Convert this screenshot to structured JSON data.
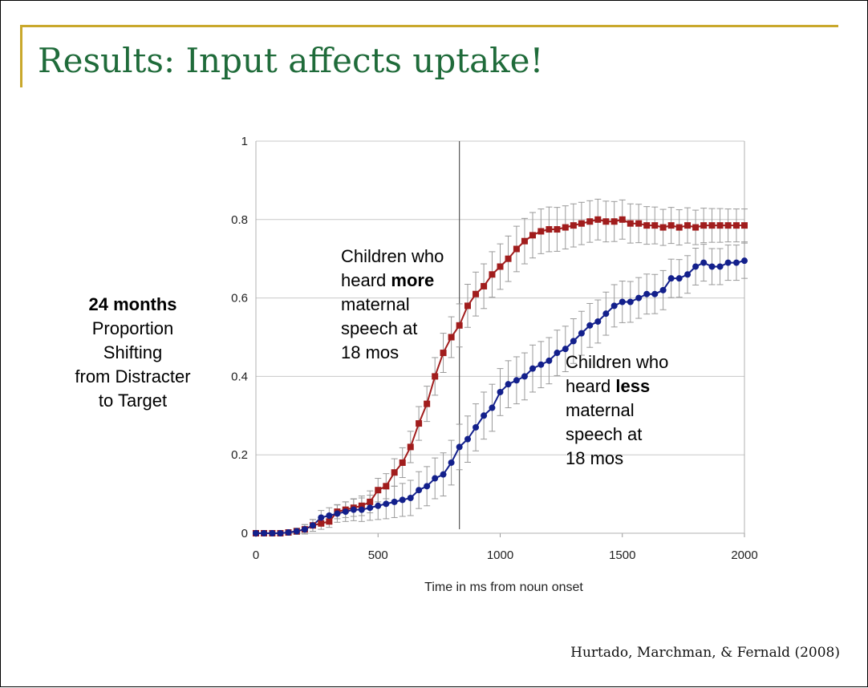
{
  "slide": {
    "title": "Results:  Input affects uptake!",
    "side_label": {
      "line1": "24 months",
      "line2": "Proportion",
      "line3": "Shifting",
      "line4": "from Distracter",
      "line5": "to Target"
    },
    "annotation_more": {
      "l1": "Children who",
      "l2a": "heard ",
      "l2b": "more",
      "l3": "maternal",
      "l4": "speech at",
      "l5": "18 mos"
    },
    "annotation_less": {
      "l1": "Children who",
      "l2a": "heard ",
      "l2b": "less",
      "l3": "maternal",
      "l4": "speech at",
      "l5": "18 mos"
    },
    "citation": "Hurtado, Marchman, & Fernald (2008)",
    "colors": {
      "title": "#1f6b3a",
      "rule": "#c9a82c",
      "more_series": "#a11d1d",
      "less_series": "#13208c"
    }
  },
  "chart_data": {
    "type": "line",
    "xlabel": "Time in ms from noun onset",
    "ylabel": "",
    "xlim": [
      0,
      2000
    ],
    "ylim": [
      0,
      1
    ],
    "xticks": [
      "0",
      "500",
      "1000",
      "1500",
      "2000"
    ],
    "yticks": [
      "0",
      "0.2",
      "0.4",
      "0.6",
      "0.8",
      "1"
    ],
    "grid": "horizontal",
    "reference_line_x": 833,
    "x": [
      0,
      33,
      67,
      100,
      133,
      167,
      200,
      233,
      267,
      300,
      333,
      367,
      400,
      433,
      467,
      500,
      533,
      567,
      600,
      633,
      667,
      700,
      733,
      767,
      800,
      833,
      867,
      900,
      933,
      967,
      1000,
      1033,
      1067,
      1100,
      1133,
      1167,
      1200,
      1233,
      1267,
      1300,
      1333,
      1367,
      1400,
      1433,
      1467,
      1500,
      1533,
      1567,
      1600,
      1633,
      1667,
      1700,
      1733,
      1767,
      1800,
      1833,
      1867,
      1900,
      1933,
      1967,
      2000
    ],
    "series": [
      {
        "marker": "square",
        "values": [
          0,
          0,
          0,
          0,
          0.002,
          0.005,
          0.01,
          0.02,
          0.025,
          0.03,
          0.055,
          0.06,
          0.065,
          0.07,
          0.08,
          0.11,
          0.12,
          0.155,
          0.18,
          0.22,
          0.28,
          0.33,
          0.4,
          0.46,
          0.5,
          0.53,
          0.58,
          0.61,
          0.63,
          0.66,
          0.68,
          0.7,
          0.725,
          0.745,
          0.76,
          0.77,
          0.775,
          0.775,
          0.78,
          0.785,
          0.79,
          0.795,
          0.8,
          0.795,
          0.795,
          0.8,
          0.79,
          0.79,
          0.785,
          0.785,
          0.78,
          0.785,
          0.78,
          0.785,
          0.78,
          0.785,
          0.785,
          0.785,
          0.785,
          0.785,
          0.785
        ],
        "errors": [
          0,
          0,
          0,
          0,
          0.005,
          0.008,
          0.012,
          0.015,
          0.015,
          0.015,
          0.018,
          0.02,
          0.022,
          0.025,
          0.028,
          0.03,
          0.032,
          0.035,
          0.038,
          0.04,
          0.043,
          0.045,
          0.048,
          0.05,
          0.052,
          0.055,
          0.055,
          0.056,
          0.057,
          0.058,
          0.058,
          0.058,
          0.058,
          0.058,
          0.058,
          0.057,
          0.057,
          0.056,
          0.055,
          0.055,
          0.054,
          0.053,
          0.052,
          0.052,
          0.051,
          0.05,
          0.05,
          0.049,
          0.048,
          0.047,
          0.046,
          0.046,
          0.045,
          0.045,
          0.044,
          0.044,
          0.043,
          0.043,
          0.042,
          0.042,
          0.042
        ]
      },
      {
        "marker": "circle",
        "values": [
          0,
          0,
          0,
          0,
          0.002,
          0.005,
          0.01,
          0.02,
          0.04,
          0.045,
          0.05,
          0.055,
          0.06,
          0.06,
          0.065,
          0.07,
          0.075,
          0.08,
          0.085,
          0.09,
          0.11,
          0.12,
          0.14,
          0.15,
          0.18,
          0.22,
          0.24,
          0.27,
          0.3,
          0.32,
          0.36,
          0.38,
          0.39,
          0.4,
          0.42,
          0.43,
          0.44,
          0.46,
          0.47,
          0.49,
          0.51,
          0.53,
          0.54,
          0.56,
          0.58,
          0.59,
          0.59,
          0.6,
          0.61,
          0.61,
          0.62,
          0.65,
          0.65,
          0.66,
          0.68,
          0.69,
          0.68,
          0.68,
          0.69,
          0.69,
          0.695
        ],
        "errors": [
          0,
          0,
          0,
          0,
          0.005,
          0.008,
          0.012,
          0.015,
          0.018,
          0.02,
          0.022,
          0.025,
          0.028,
          0.03,
          0.032,
          0.035,
          0.038,
          0.04,
          0.042,
          0.045,
          0.047,
          0.05,
          0.052,
          0.055,
          0.057,
          0.058,
          0.059,
          0.06,
          0.06,
          0.06,
          0.06,
          0.06,
          0.06,
          0.06,
          0.06,
          0.059,
          0.059,
          0.058,
          0.058,
          0.057,
          0.056,
          0.056,
          0.055,
          0.055,
          0.054,
          0.053,
          0.052,
          0.052,
          0.051,
          0.05,
          0.05,
          0.049,
          0.048,
          0.048,
          0.047,
          0.047,
          0.046,
          0.046,
          0.045,
          0.045,
          0.045
        ]
      }
    ]
  }
}
